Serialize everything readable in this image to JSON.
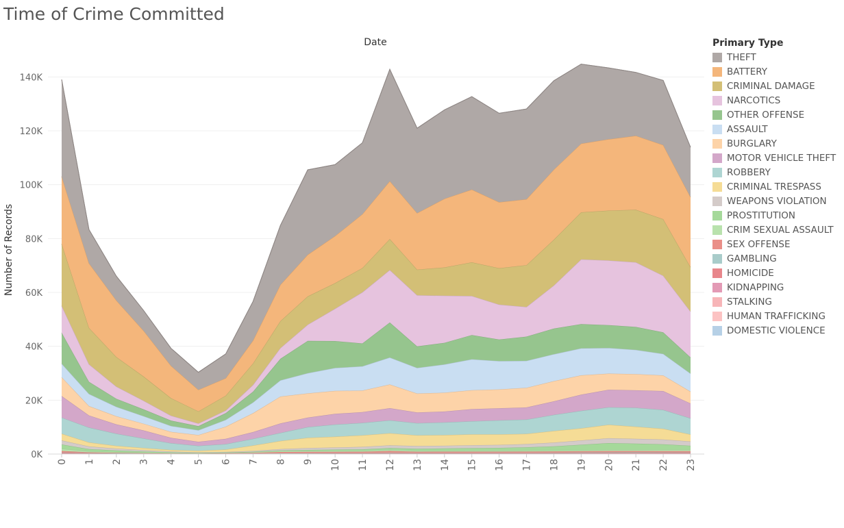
{
  "title": "Time of Crime Committed",
  "chart_data": {
    "type": "area",
    "stacked": true,
    "title": "Time of Crime Committed",
    "header": "Date",
    "xlabel": "",
    "ylabel": "Number of Records",
    "x": [
      0,
      1,
      2,
      3,
      4,
      5,
      6,
      7,
      8,
      9,
      10,
      11,
      12,
      13,
      14,
      15,
      16,
      17,
      18,
      19,
      20,
      21,
      22,
      23
    ],
    "ylim": [
      0,
      150000
    ],
    "yticks": [
      0,
      20000,
      40000,
      60000,
      80000,
      100000,
      120000,
      140000
    ],
    "ytick_labels": [
      "0K",
      "20K",
      "40K",
      "60K",
      "80K",
      "100K",
      "120K",
      "140K"
    ],
    "grid": true,
    "legend_title": "Primary Type",
    "legend_position": "right",
    "series": [
      {
        "name": "DOMESTIC VIOLENCE",
        "color": "#b6d0e6",
        "values": [
          0,
          0,
          0,
          0,
          0,
          0,
          0,
          0,
          0,
          0,
          0,
          0,
          0,
          0,
          0,
          0,
          0,
          0,
          0,
          0,
          0,
          0,
          0,
          0
        ]
      },
      {
        "name": "HUMAN TRAFFICKING",
        "color": "#fcc3c3",
        "values": [
          0,
          0,
          0,
          0,
          0,
          0,
          0,
          0,
          0,
          0,
          0,
          0,
          0,
          0,
          0,
          0,
          0,
          0,
          0,
          0,
          0,
          0,
          0,
          0
        ]
      },
      {
        "name": "STALKING",
        "color": "#f7b5b8",
        "values": [
          50,
          30,
          25,
          20,
          15,
          15,
          20,
          30,
          50,
          60,
          60,
          60,
          70,
          60,
          60,
          60,
          60,
          60,
          60,
          60,
          60,
          60,
          60,
          60
        ]
      },
      {
        "name": "KIDNAPPING",
        "color": "#e39ab5",
        "values": [
          100,
          50,
          40,
          30,
          30,
          30,
          40,
          60,
          80,
          90,
          90,
          90,
          100,
          90,
          90,
          90,
          90,
          90,
          90,
          90,
          90,
          90,
          90,
          90
        ]
      },
      {
        "name": "HOMICIDE",
        "color": "#e8868b",
        "values": [
          300,
          200,
          150,
          100,
          80,
          60,
          60,
          60,
          80,
          90,
          100,
          110,
          120,
          120,
          130,
          140,
          150,
          160,
          180,
          200,
          220,
          230,
          250,
          280
        ]
      },
      {
        "name": "GAMBLING",
        "color": "#a9ccca",
        "values": [
          100,
          50,
          30,
          20,
          10,
          10,
          10,
          20,
          50,
          80,
          100,
          100,
          150,
          100,
          100,
          100,
          100,
          100,
          150,
          200,
          250,
          250,
          200,
          150
        ]
      },
      {
        "name": "SEX OFFENSE",
        "color": "#ea8f88",
        "values": [
          600,
          300,
          200,
          150,
          100,
          80,
          150,
          300,
          500,
          500,
          500,
          500,
          700,
          500,
          500,
          500,
          500,
          500,
          500,
          500,
          500,
          500,
          500,
          500
        ]
      },
      {
        "name": "CRIM SEXUAL ASSAULT",
        "color": "#b9e2ad",
        "values": [
          800,
          400,
          300,
          250,
          200,
          150,
          200,
          300,
          400,
          400,
          400,
          400,
          500,
          400,
          400,
          400,
          400,
          400,
          400,
          400,
          450,
          450,
          500,
          500
        ]
      },
      {
        "name": "PROSTITUTION",
        "color": "#a5d99a",
        "values": [
          1600,
          800,
          600,
          400,
          200,
          100,
          100,
          100,
          200,
          300,
          400,
          500,
          600,
          700,
          800,
          900,
          1000,
          1200,
          1500,
          2000,
          2500,
          2300,
          2000,
          1500
        ]
      },
      {
        "name": "WEAPONS VIOLATION",
        "color": "#d4cbc9",
        "values": [
          1500,
          1000,
          700,
          500,
          300,
          200,
          200,
          300,
          500,
          700,
          800,
          900,
          1000,
          1000,
          1000,
          1100,
          1100,
          1200,
          1400,
          1600,
          1800,
          1800,
          1800,
          1600
        ]
      },
      {
        "name": "CRIMINAL TRESPASS",
        "color": "#f5dc96",
        "values": [
          2500,
          1500,
          1000,
          800,
          600,
          600,
          900,
          2000,
          3000,
          3800,
          4000,
          4300,
          4500,
          4000,
          4000,
          4000,
          3900,
          3800,
          4300,
          4500,
          5000,
          4500,
          4000,
          2600
        ]
      },
      {
        "name": "ROBBERY",
        "color": "#aed5d2",
        "values": [
          6000,
          5500,
          4500,
          3500,
          2500,
          1800,
          2000,
          2500,
          3000,
          4000,
          4500,
          4600,
          4800,
          4500,
          4700,
          4900,
          5200,
          5300,
          6000,
          6500,
          6500,
          7000,
          7000,
          6000
        ]
      },
      {
        "name": "MOTOR VEHICLE THEFT",
        "color": "#d3a7c9",
        "values": [
          8000,
          4500,
          3500,
          3000,
          2000,
          1500,
          2000,
          2500,
          3500,
          3500,
          4000,
          4000,
          4500,
          4000,
          4000,
          4500,
          4500,
          4500,
          5000,
          6000,
          6500,
          6500,
          7000,
          5500
        ]
      },
      {
        "name": "BURGLARY",
        "color": "#fdd3a8",
        "values": [
          7000,
          3500,
          3000,
          2500,
          2200,
          2500,
          4500,
          7000,
          10000,
          9000,
          8500,
          8000,
          8800,
          7000,
          7000,
          7000,
          7000,
          7300,
          7500,
          7200,
          6000,
          6000,
          5800,
          4400
        ]
      },
      {
        "name": "ASSAULT",
        "color": "#c9def2",
        "values": [
          5000,
          4500,
          3500,
          2800,
          2200,
          1800,
          2500,
          4000,
          6000,
          7500,
          8500,
          9000,
          10000,
          9500,
          10500,
          11500,
          10500,
          10000,
          10000,
          10000,
          9500,
          9000,
          8000,
          6700
        ]
      },
      {
        "name": "OTHER OFFENSE",
        "color": "#96c58e",
        "values": [
          11500,
          4500,
          3000,
          2500,
          2000,
          1500,
          2500,
          4000,
          8000,
          12000,
          10000,
          8500,
          13000,
          8000,
          8000,
          9000,
          8000,
          9000,
          9500,
          9000,
          8500,
          8500,
          8000,
          6000
        ]
      },
      {
        "name": "NARCOTICS",
        "color": "#e6c3de",
        "values": [
          10000,
          6500,
          4500,
          3200,
          1800,
          1000,
          1000,
          2500,
          4000,
          6000,
          12000,
          19000,
          19500,
          19000,
          17500,
          14500,
          13000,
          11000,
          16000,
          24000,
          24000,
          24000,
          21000,
          17000
        ]
      },
      {
        "name": "CRIMINAL DAMAGE",
        "color": "#d3bf76",
        "values": [
          23000,
          13500,
          11000,
          9000,
          6500,
          4500,
          5500,
          8000,
          10000,
          10500,
          9500,
          9000,
          11500,
          9500,
          10500,
          12500,
          13500,
          15500,
          17000,
          17500,
          18500,
          19500,
          21000,
          16500
        ]
      },
      {
        "name": "BATTERY",
        "color": "#f4b67b",
        "values": [
          25000,
          24000,
          21000,
          17000,
          12000,
          8000,
          6500,
          8500,
          13500,
          15500,
          17500,
          20000,
          21500,
          21000,
          25500,
          27000,
          24500,
          24500,
          26000,
          25500,
          26500,
          27500,
          27500,
          26000
        ]
      },
      {
        "name": "THEFT",
        "color": "#afa8a6",
        "values": [
          36000,
          12500,
          9000,
          7500,
          6500,
          6500,
          9000,
          14500,
          22000,
          31500,
          26500,
          26500,
          41500,
          31500,
          33000,
          34500,
          33000,
          33500,
          33000,
          29500,
          26500,
          23500,
          24000,
          18500
        ]
      }
    ]
  }
}
